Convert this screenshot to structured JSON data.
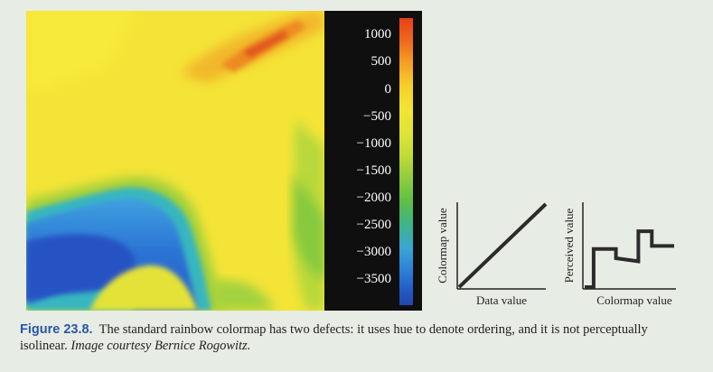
{
  "colorbar": {
    "ticks": [
      "1000",
      "500",
      "0",
      "−500",
      "−1000",
      "−1500",
      "−2000",
      "−2500",
      "−3000",
      "−3500"
    ]
  },
  "chart_data": [
    {
      "type": "line",
      "xlabel": "Data value",
      "ylabel": "Colormap value",
      "x": [
        0,
        1
      ],
      "y": [
        0,
        1
      ]
    },
    {
      "type": "line",
      "xlabel": "Colormap value",
      "ylabel": "Perceived value",
      "x": [
        0,
        0.1,
        0.1,
        0.35,
        0.35,
        0.6,
        0.6,
        0.75,
        0.75,
        0.9,
        0.9,
        1.0
      ],
      "y": [
        0,
        0,
        0.62,
        0.62,
        0.47,
        0.42,
        0.91,
        0.91,
        0.67,
        0.67,
        0.67,
        0.67
      ]
    }
  ],
  "caption": {
    "label": "Figure 23.8.",
    "text": "The standard rainbow colormap has two defects: it uses hue to denote ordering, and it is not perceptually isolinear.",
    "credit": "Image courtesy Bernice Rogowitz."
  }
}
